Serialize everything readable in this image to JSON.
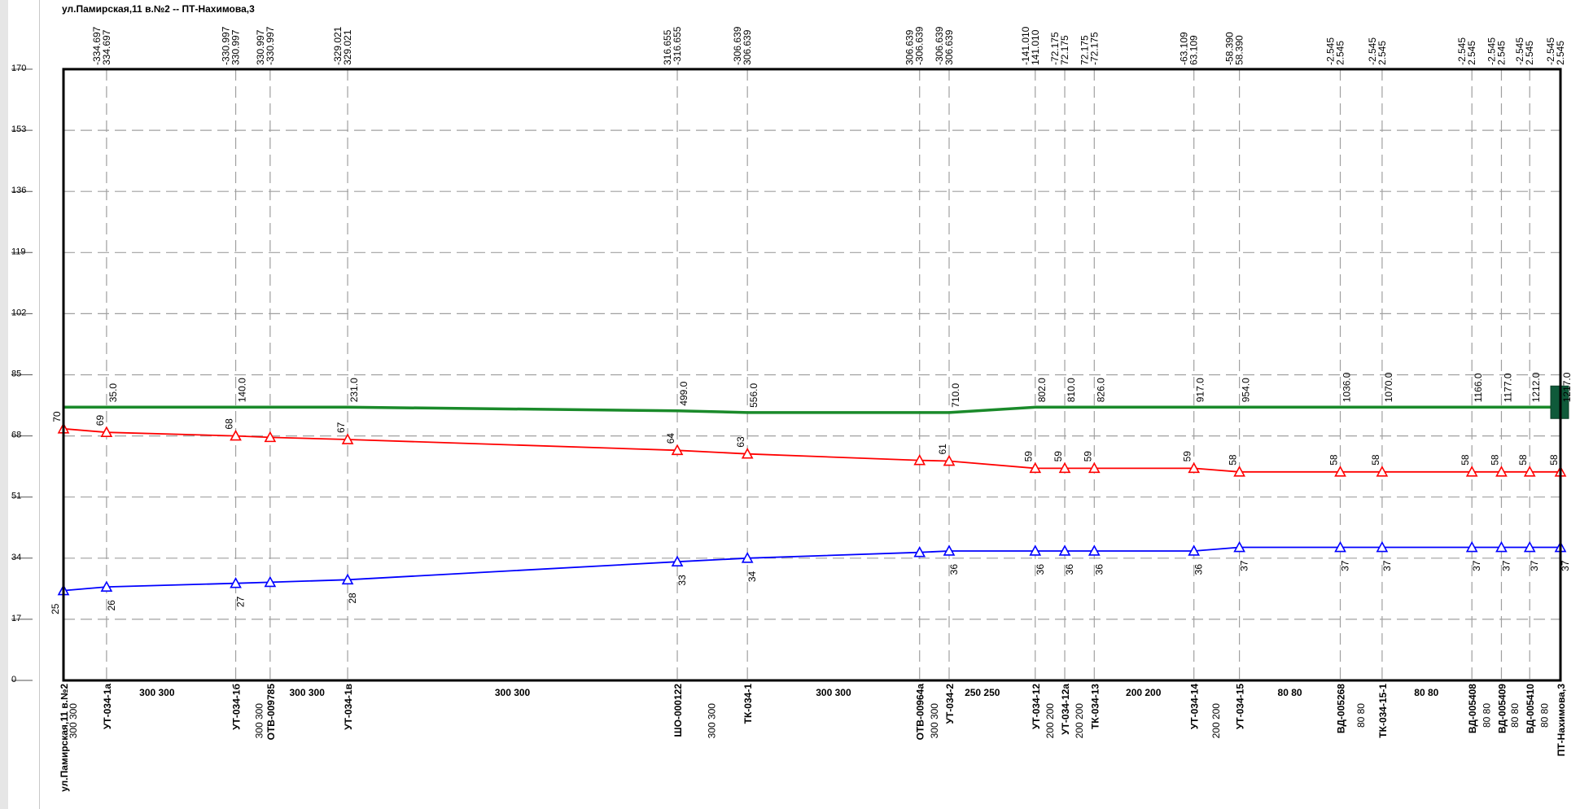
{
  "title": "ул.Памирская,11 в.№2 -- ПТ-Нахимова,3",
  "colors": {
    "supply": "#ff0000",
    "return": "#0000ff",
    "ground": "#1a8a2a",
    "grid": "#a0a0a0",
    "end_marker": "#0f5a3a"
  },
  "chart_data": {
    "type": "line",
    "ylim": [
      0,
      170
    ],
    "y_ticks": [
      "170",
      "153",
      "136",
      "119",
      "102",
      "85",
      "68",
      "51",
      "34",
      "17",
      "0"
    ],
    "grid": true,
    "x_distance_range": [
      0,
      1217
    ],
    "nodes": [
      {
        "name": "ул.Памирская,11 в.№2",
        "x": 0,
        "supply": 70,
        "ret": 25,
        "ground": 76,
        "dist": "",
        "flows": [],
        "supply_label": "70",
        "return_label": "25"
      },
      {
        "name": "УТ-034-1а",
        "x": 35,
        "supply": 69,
        "ret": 26,
        "ground": 76,
        "dist": "35.0",
        "flows": [
          "-334.697",
          "334.697"
        ],
        "supply_label": "69",
        "return_label": "26"
      },
      {
        "name": "УТ-034-1б",
        "x": 140,
        "supply": 68,
        "ret": 27,
        "ground": 76,
        "dist": "140.0",
        "flows": [
          "-330.997",
          "330.997"
        ],
        "supply_label": "68",
        "return_label": "27"
      },
      {
        "name": "ОТВ-009785",
        "x": 168,
        "supply": 67.6,
        "ret": 27.3,
        "ground": 76,
        "dist": "",
        "flows": [
          "330.997",
          "-330.997"
        ],
        "supply_label": "",
        "return_label": ""
      },
      {
        "name": "УТ-034-1в",
        "x": 231,
        "supply": 67,
        "ret": 28,
        "ground": 76,
        "dist": "231.0",
        "flows": [
          "-329.021",
          "329.021"
        ],
        "supply_label": "67",
        "return_label": "28"
      },
      {
        "name": "ШО-000122",
        "x": 499,
        "supply": 64,
        "ret": 33,
        "ground": 75,
        "dist": "499.0",
        "flows": [
          "316.655",
          "-316.655"
        ],
        "supply_label": "64",
        "return_label": "33"
      },
      {
        "name": "ТК-034-1",
        "x": 556,
        "supply": 63,
        "ret": 34,
        "ground": 74.5,
        "dist": "556.0",
        "flows": [
          "-306.639",
          "306.639"
        ],
        "supply_label": "63",
        "return_label": "34"
      },
      {
        "name": "ОТВ-00964а",
        "x": 696,
        "supply": 61.2,
        "ret": 35.6,
        "ground": 74.5,
        "dist": "",
        "flows": [
          "306.639",
          "-306.639"
        ],
        "supply_label": "",
        "return_label": ""
      },
      {
        "name": "УТ-034-2",
        "x": 720,
        "supply": 61,
        "ret": 36,
        "ground": 74.5,
        "dist": "710.0",
        "flows": [
          "-306.639",
          "306.639"
        ],
        "supply_label": "61",
        "return_label": "36"
      },
      {
        "name": "УТ-034-12",
        "x": 790,
        "supply": 59,
        "ret": 36,
        "ground": 76,
        "dist": "802.0",
        "flows": [
          "-141.010",
          "141.010"
        ],
        "supply_label": "59",
        "return_label": "36"
      },
      {
        "name": "УТ-034-12а",
        "x": 814,
        "supply": 59,
        "ret": 36,
        "ground": 76,
        "dist": "810.0",
        "flows": [
          "-72.175",
          "72.175"
        ],
        "supply_label": "59",
        "return_label": "36"
      },
      {
        "name": "ТК-034-13",
        "x": 838,
        "supply": 59,
        "ret": 36,
        "ground": 76,
        "dist": "826.0",
        "flows": [
          "72.175",
          "-72.175"
        ],
        "supply_label": "59",
        "return_label": "36"
      },
      {
        "name": "УТ-034-14",
        "x": 919,
        "supply": 59,
        "ret": 36,
        "ground": 76,
        "dist": "917.0",
        "flows": [
          "-63.109",
          "63.109"
        ],
        "supply_label": "59",
        "return_label": "36"
      },
      {
        "name": "УТ-034-15",
        "x": 956,
        "supply": 58,
        "ret": 37,
        "ground": 76,
        "dist": "954.0",
        "flows": [
          "-58.390",
          "58.390"
        ],
        "supply_label": "58",
        "return_label": "37"
      },
      {
        "name": "ВД-005268",
        "x": 1038,
        "supply": 58,
        "ret": 37,
        "ground": 76,
        "dist": "1036.0",
        "flows": [
          "-2.545",
          "2.545"
        ],
        "supply_label": "58",
        "return_label": "37"
      },
      {
        "name": "ТК-034-15-1",
        "x": 1072,
        "supply": 58,
        "ret": 37,
        "ground": 76,
        "dist": "1070.0",
        "flows": [
          "-2.545",
          "2.545"
        ],
        "supply_label": "58",
        "return_label": "37"
      },
      {
        "name": "ВД-005408",
        "x": 1145,
        "supply": 58,
        "ret": 37,
        "ground": 76,
        "dist": "1166.0",
        "flows": [
          "-2.545",
          "2.545"
        ],
        "supply_label": "58",
        "return_label": "37"
      },
      {
        "name": "ВД-005409",
        "x": 1169,
        "supply": 58,
        "ret": 37,
        "ground": 76,
        "dist": "1177.0",
        "flows": [
          "-2.545",
          "2.545"
        ],
        "supply_label": "58",
        "return_label": "37"
      },
      {
        "name": "ВД-005410",
        "x": 1192,
        "supply": 58,
        "ret": 37,
        "ground": 76,
        "dist": "1212.0",
        "flows": [
          "-2.545",
          "2.545"
        ],
        "supply_label": "58",
        "return_label": "37"
      },
      {
        "name": "ПТ-Нахимова,3",
        "x": 1217,
        "supply": 58,
        "ret": 37,
        "ground": 76,
        "dist": "1217.0",
        "flows": [
          "-2.545",
          "2.545"
        ],
        "supply_label": "58",
        "return_label": "37"
      }
    ],
    "segments": [
      {
        "x": 8,
        "label": "300  300",
        "v": true
      },
      {
        "x": 76,
        "label": "300  300"
      },
      {
        "x": 159,
        "label": "300  300",
        "v": true
      },
      {
        "x": 198,
        "label": "300  300"
      },
      {
        "x": 365,
        "label": "300  300"
      },
      {
        "x": 527,
        "label": "300  300",
        "v": true
      },
      {
        "x": 626,
        "label": "300  300"
      },
      {
        "x": 708,
        "label": "300  300",
        "v": true
      },
      {
        "x": 747,
        "label": "250  250"
      },
      {
        "x": 802,
        "label": "200  200",
        "v": true
      },
      {
        "x": 826,
        "label": "200  200",
        "v": true
      },
      {
        "x": 878,
        "label": "200  200"
      },
      {
        "x": 937,
        "label": "200  200",
        "v": true
      },
      {
        "x": 997,
        "label": "80  80"
      },
      {
        "x": 1055,
        "label": "80  80",
        "v": true
      },
      {
        "x": 1108,
        "label": "80  80"
      },
      {
        "x": 1157,
        "label": "80  80",
        "v": true
      },
      {
        "x": 1180,
        "label": "80  80",
        "v": true
      },
      {
        "x": 1204,
        "label": "80  80",
        "v": true
      }
    ]
  }
}
